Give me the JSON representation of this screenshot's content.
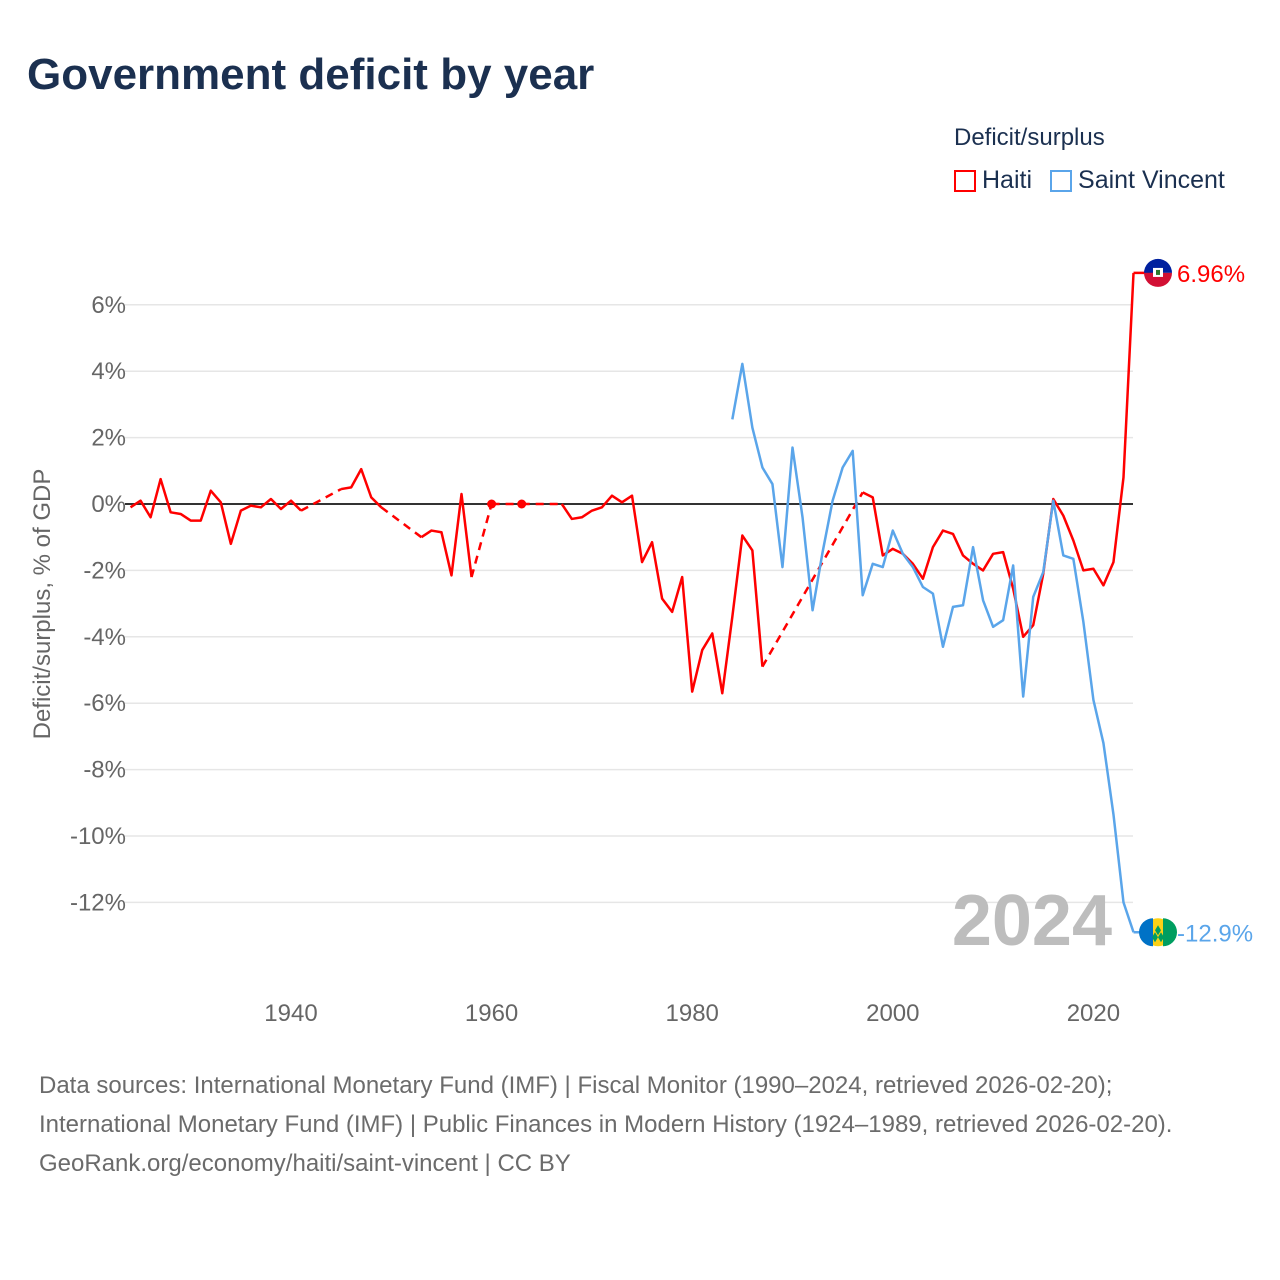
{
  "title": "Government deficit by year",
  "legend_title": "Deficit/surplus",
  "year_label": "2024",
  "footer": {
    "sources": "Data sources: International Monetary Fund (IMF) | Fiscal Monitor (1990–2024, retrieved 2026-02-20); International Monetary Fund (IMF) | Public Finances in Modern History (1924–1989, retrieved 2026-02-20).",
    "credit": "GeoRank.org/economy/haiti/saint-vincent | CC BY"
  },
  "chart_data": {
    "type": "line",
    "title": "Government deficit by year",
    "xlabel": "",
    "ylabel": "Deficit/surplus, % of GDP",
    "xlim": [
      1923.5,
      2024
    ],
    "ylim": [
      -13.5,
      7.5
    ],
    "x_ticks": [
      1940,
      1960,
      1980,
      2000,
      2020
    ],
    "x_tick_labels": [
      "1940",
      "1960",
      "1980",
      "2000",
      "2020"
    ],
    "y_ticks": [
      6,
      4,
      2,
      0,
      -2,
      -4,
      -6,
      -8,
      -10,
      -12
    ],
    "y_tick_labels": [
      "6%",
      "4%",
      "2%",
      "0%",
      "-2%",
      "-4%",
      "-6%",
      "-8%",
      "-10%",
      "-12%"
    ],
    "grid": true,
    "legend_position": "top-right",
    "series": [
      {
        "name": "Haiti",
        "color": "#ff0000",
        "end_label": "6.96%",
        "points": [
          [
            1924,
            -0.1
          ],
          [
            1925,
            0.1
          ],
          [
            1926,
            -0.4
          ],
          [
            1927,
            0.75
          ],
          [
            1928,
            -0.25
          ],
          [
            1929,
            -0.3
          ],
          [
            1930,
            -0.5
          ],
          [
            1931,
            -0.5
          ],
          [
            1932,
            0.4
          ],
          [
            1933,
            0.05
          ],
          [
            1934,
            -1.2
          ],
          [
            1935,
            -0.2
          ],
          [
            1936,
            -0.05
          ],
          [
            1937,
            -0.1
          ],
          [
            1938,
            0.15
          ],
          [
            1939,
            -0.15
          ],
          [
            1940,
            0.1
          ],
          [
            1941,
            -0.2
          ],
          [
            1945,
            0.45
          ],
          [
            1946,
            0.5
          ],
          [
            1947,
            1.05
          ],
          [
            1948,
            0.2
          ],
          [
            1949,
            -0.1
          ],
          [
            1953,
            -1.0
          ],
          [
            1954,
            -0.8
          ],
          [
            1955,
            -0.85
          ],
          [
            1956,
            -2.15
          ],
          [
            1957,
            0.3
          ],
          [
            1958,
            -2.2
          ],
          [
            1960,
            0
          ],
          [
            1963,
            0
          ],
          [
            1967,
            0
          ],
          [
            1968,
            -0.45
          ],
          [
            1969,
            -0.4
          ],
          [
            1970,
            -0.2
          ],
          [
            1971,
            -0.1
          ],
          [
            1972,
            0.25
          ],
          [
            1973,
            0.05
          ],
          [
            1974,
            0.25
          ],
          [
            1975,
            -1.75
          ],
          [
            1976,
            -1.15
          ],
          [
            1977,
            -2.85
          ],
          [
            1978,
            -3.25
          ],
          [
            1979,
            -2.2
          ],
          [
            1980,
            -5.65
          ],
          [
            1981,
            -4.4
          ],
          [
            1982,
            -3.9
          ],
          [
            1983,
            -5.7
          ],
          [
            1984,
            -3.4
          ],
          [
            1985,
            -0.95
          ],
          [
            1986,
            -1.4
          ],
          [
            1987,
            -4.9
          ],
          [
            1997,
            0.35
          ],
          [
            1998,
            0.2
          ],
          [
            1999,
            -1.55
          ],
          [
            2000,
            -1.35
          ],
          [
            2001,
            -1.5
          ],
          [
            2002,
            -1.8
          ],
          [
            2003,
            -2.25
          ],
          [
            2004,
            -1.3
          ],
          [
            2005,
            -0.8
          ],
          [
            2006,
            -0.9
          ],
          [
            2007,
            -1.55
          ],
          [
            2008,
            -1.8
          ],
          [
            2009,
            -2.0
          ],
          [
            2010,
            -1.5
          ],
          [
            2011,
            -1.45
          ],
          [
            2012,
            -2.55
          ],
          [
            2013,
            -4.0
          ],
          [
            2014,
            -3.65
          ],
          [
            2015,
            -2.1
          ],
          [
            2016,
            0.15
          ],
          [
            2017,
            -0.35
          ],
          [
            2018,
            -1.1
          ],
          [
            2019,
            -2.0
          ],
          [
            2020,
            -1.95
          ],
          [
            2021,
            -2.45
          ],
          [
            2022,
            -1.75
          ],
          [
            2023,
            0.8
          ],
          [
            2024,
            6.96
          ]
        ]
      },
      {
        "name": "Saint Vincent",
        "color": "#5aa5ea",
        "end_label": "-12.9%",
        "points": [
          [
            1984,
            2.55
          ],
          [
            1985,
            4.22
          ],
          [
            1986,
            2.3
          ],
          [
            1987,
            1.1
          ],
          [
            1988,
            0.6
          ],
          [
            1989,
            -1.9
          ],
          [
            1990,
            1.7
          ],
          [
            1991,
            -0.4
          ],
          [
            1992,
            -3.2
          ],
          [
            1993,
            -1.45
          ],
          [
            1994,
            0.1
          ],
          [
            1995,
            1.1
          ],
          [
            1996,
            1.6
          ],
          [
            1997,
            -2.75
          ],
          [
            1998,
            -1.8
          ],
          [
            1999,
            -1.9
          ],
          [
            2000,
            -0.8
          ],
          [
            2001,
            -1.5
          ],
          [
            2002,
            -1.9
          ],
          [
            2003,
            -2.5
          ],
          [
            2004,
            -2.7
          ],
          [
            2005,
            -4.3
          ],
          [
            2006,
            -3.1
          ],
          [
            2007,
            -3.05
          ],
          [
            2008,
            -1.3
          ],
          [
            2009,
            -2.9
          ],
          [
            2010,
            -3.7
          ],
          [
            2011,
            -3.5
          ],
          [
            2012,
            -1.85
          ],
          [
            2013,
            -5.8
          ],
          [
            2014,
            -2.8
          ],
          [
            2015,
            -2.05
          ],
          [
            2016,
            0.1
          ],
          [
            2017,
            -1.55
          ],
          [
            2018,
            -1.65
          ],
          [
            2019,
            -3.55
          ],
          [
            2020,
            -5.9
          ],
          [
            2021,
            -7.2
          ],
          [
            2022,
            -9.35
          ],
          [
            2023,
            -12.0
          ],
          [
            2024,
            -12.9
          ]
        ]
      }
    ]
  }
}
